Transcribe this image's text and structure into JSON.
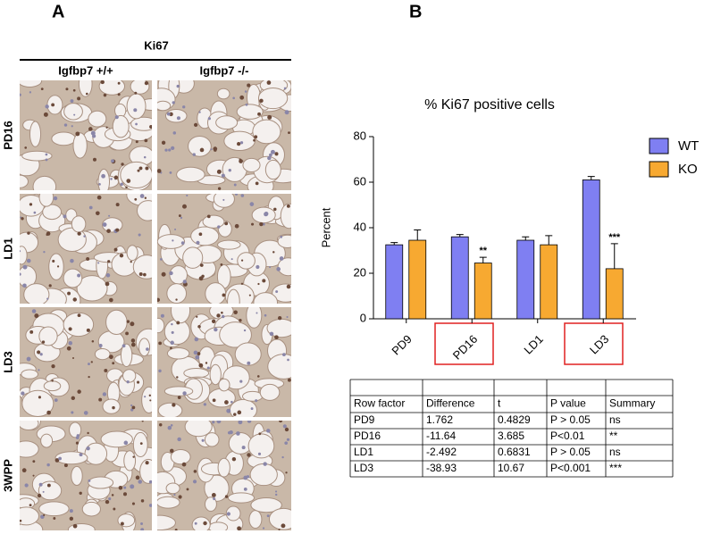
{
  "panel_a": {
    "label": "A",
    "stain": "Ki67",
    "columns": [
      "Igfbp7 +/+",
      "Igfbp7 -/-"
    ],
    "rows": [
      "PD16",
      "LD1",
      "LD3",
      "3WPP"
    ]
  },
  "panel_b": {
    "label": "B"
  },
  "chart_data": {
    "type": "bar",
    "title": "% Ki67 positive cells",
    "y_label": "Percent",
    "categories": [
      "PD9",
      "PD16",
      "LD1",
      "LD3"
    ],
    "series": [
      {
        "name": "WT",
        "color": "#7f7ff2",
        "values": [
          32.5,
          36,
          34.5,
          61
        ],
        "errors": [
          1,
          1,
          1.5,
          1.5
        ]
      },
      {
        "name": "KO",
        "color": "#f7a931",
        "values": [
          34.5,
          24.5,
          32.5,
          22
        ],
        "errors": [
          4.5,
          2.5,
          4,
          11
        ],
        "significance": [
          null,
          "**",
          null,
          "***"
        ]
      }
    ],
    "ylim": [
      0,
      80
    ],
    "yticks": [
      0,
      20,
      40,
      60,
      80
    ],
    "legend": "right"
  },
  "table": {
    "header": [
      "Row factor",
      "Difference",
      "t",
      "P value",
      "Summary"
    ],
    "rows": [
      [
        "PD9",
        "1.762",
        "0.4829",
        "P > 0.05",
        "ns"
      ],
      [
        "PD16",
        "-11.64",
        "3.685",
        "P<0.01",
        "**"
      ],
      [
        "LD1",
        "-2.492",
        "0.6831",
        "P > 0.05",
        "ns"
      ],
      [
        "LD3",
        "-38.93",
        "10.67",
        "P<0.001",
        "***"
      ]
    ]
  }
}
